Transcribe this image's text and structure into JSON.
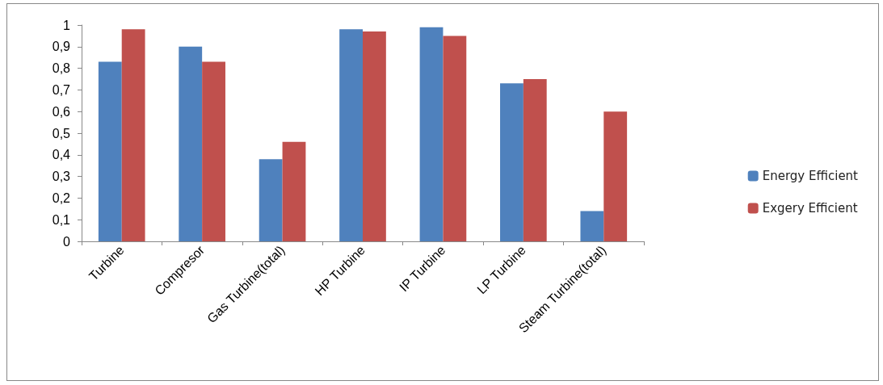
{
  "chart_data": {
    "type": "bar",
    "categories": [
      "Turbine",
      "Compresor",
      "Gas Turbine(total)",
      "HP Turbine",
      "IP Turbine",
      "LP Turbine",
      "Steam Turbine(total)"
    ],
    "series": [
      {
        "name": "Energy Efficient",
        "color": "#4f81bd",
        "values": [
          0.83,
          0.9,
          0.38,
          0.98,
          0.99,
          0.73,
          0.14
        ]
      },
      {
        "name": "Exgery Efficient",
        "color": "#c0504d",
        "values": [
          0.98,
          0.83,
          0.46,
          0.97,
          0.95,
          0.75,
          0.6
        ]
      }
    ],
    "ylim": [
      0,
      1
    ],
    "yticks": [
      0,
      {
        "value": 0.1,
        "label": "0,1"
      },
      {
        "value": 0.2,
        "label": "0,2"
      },
      {
        "value": 0.3,
        "label": "0,3"
      },
      {
        "value": 0.4,
        "label": "0,4"
      },
      {
        "value": 0.5,
        "label": "0,5"
      },
      {
        "value": 0.6,
        "label": "0,6"
      },
      {
        "value": 0.7,
        "label": "0,7"
      },
      {
        "value": 0.8,
        "label": "0,8"
      },
      {
        "value": 0.9,
        "label": "0,9"
      },
      1
    ],
    "grid": false,
    "legend": "right"
  }
}
